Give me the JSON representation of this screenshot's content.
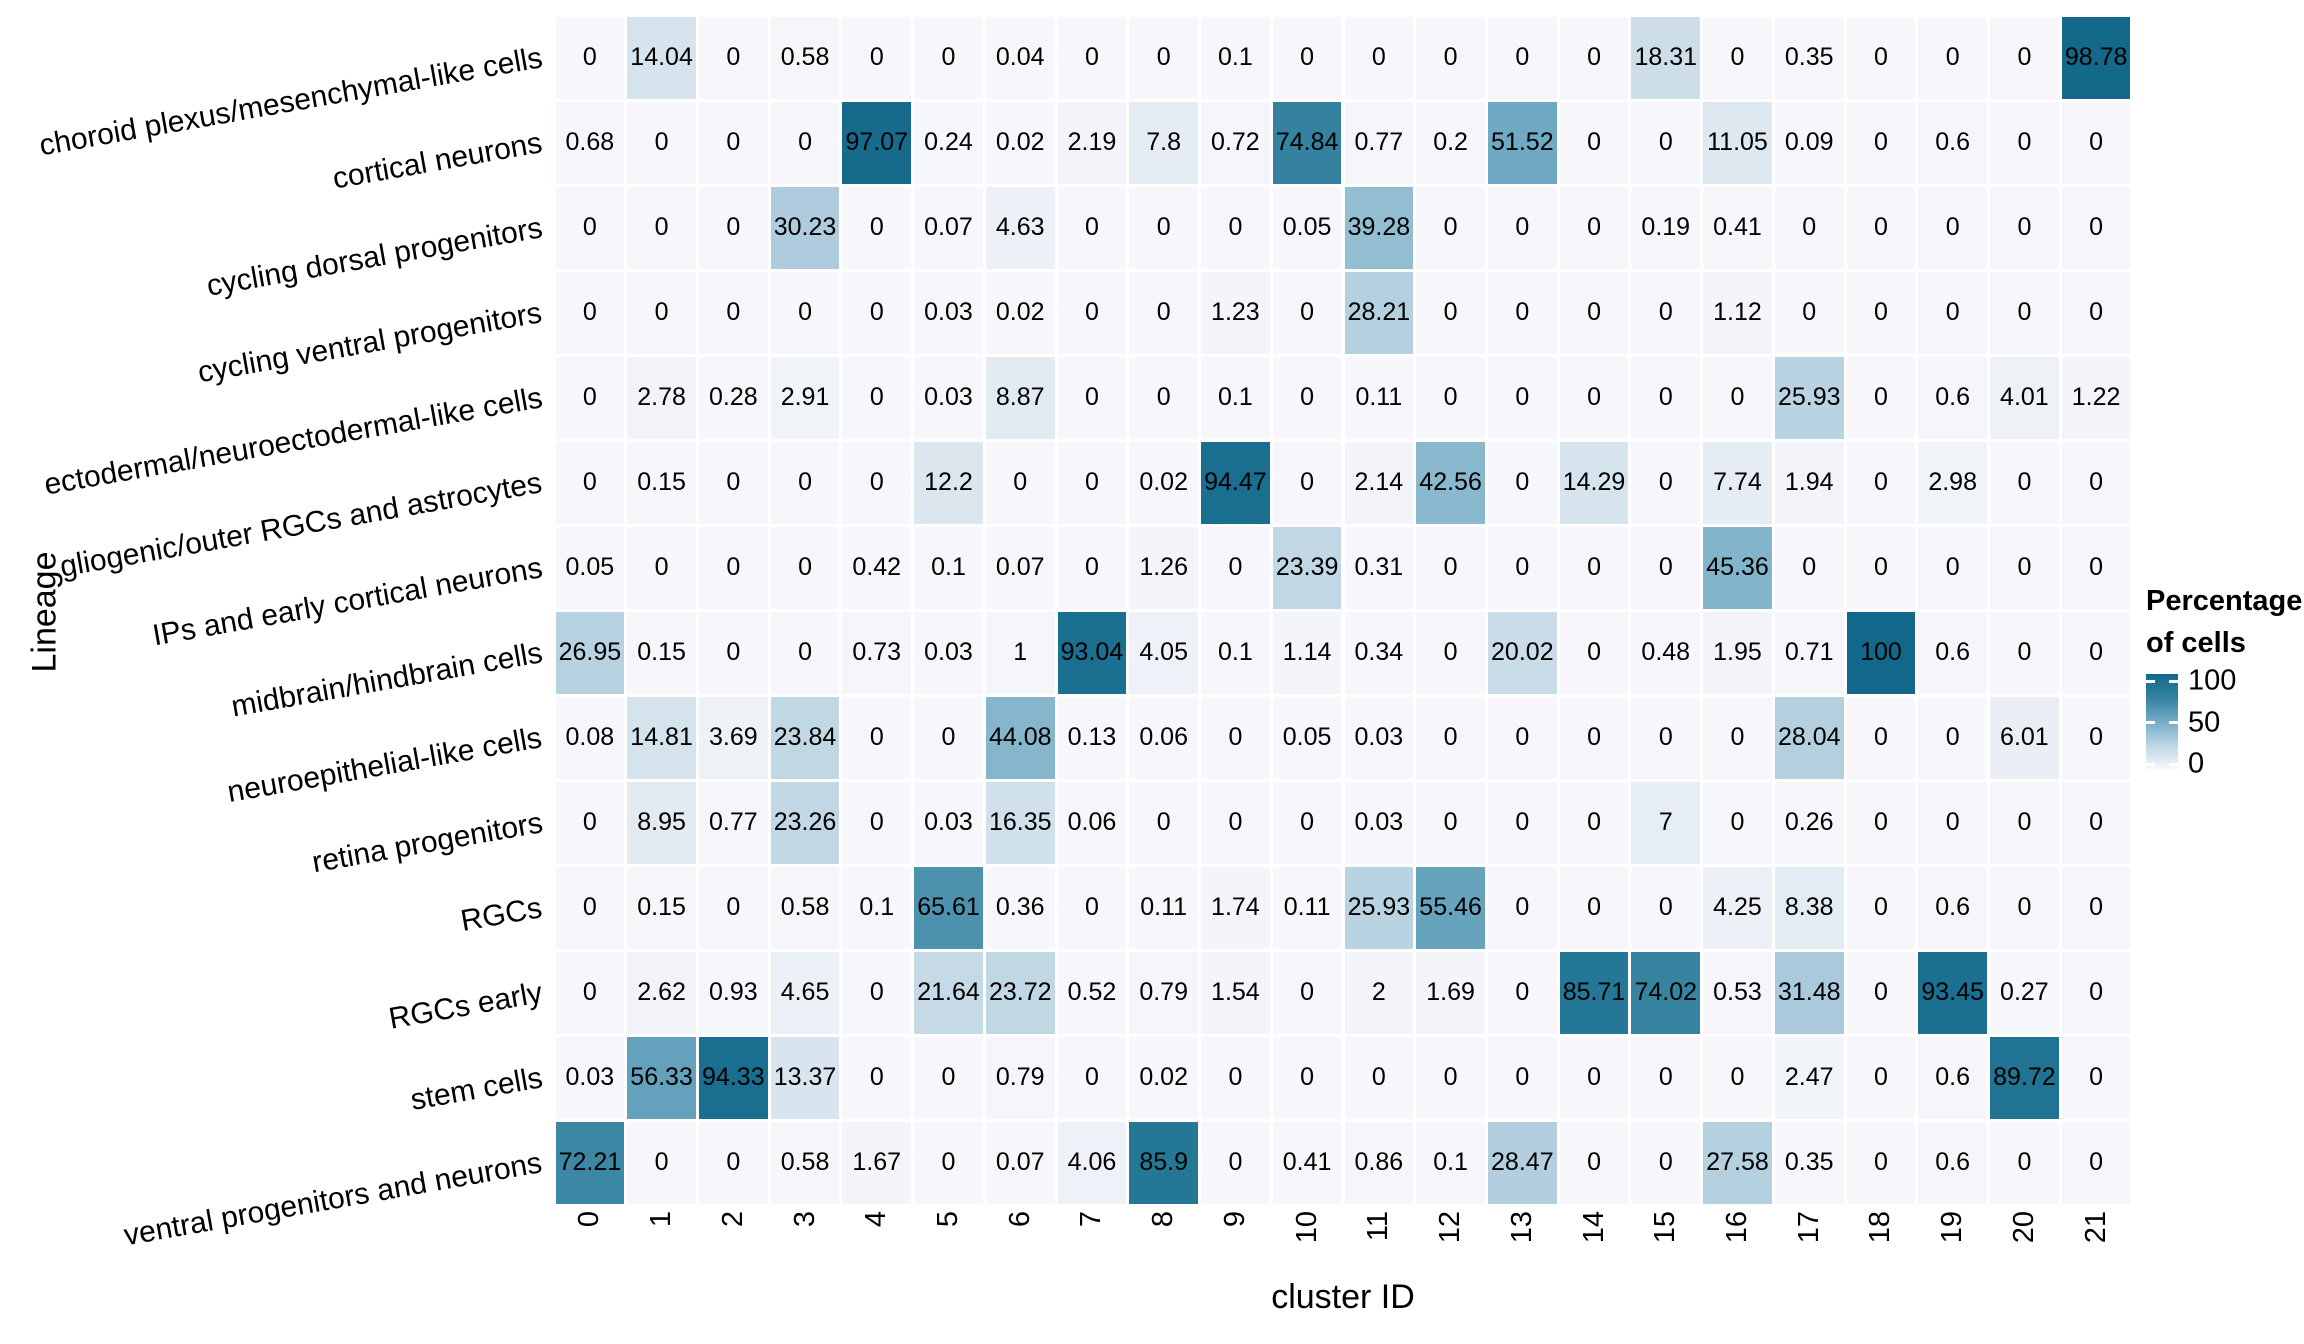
{
  "chart_data": {
    "type": "heatmap",
    "title": "",
    "xlabel": "cluster ID",
    "ylabel": "Lineage",
    "grid": false,
    "legend_position": "right",
    "legend": {
      "title": "Percentage of cells",
      "title_lines": [
        "Percentage",
        "of cells"
      ],
      "ticks": [
        100,
        50,
        0
      ],
      "range": [
        0,
        100
      ]
    },
    "color_scale": [
      {
        "value": 0,
        "color": "#F7F7FB"
      },
      {
        "value": 25,
        "color": "#BDD5E3"
      },
      {
        "value": 50,
        "color": "#74ACC5"
      },
      {
        "value": 75,
        "color": "#3482A0"
      },
      {
        "value": 100,
        "color": "#12688A"
      }
    ],
    "columns": [
      "0",
      "1",
      "2",
      "3",
      "4",
      "5",
      "6",
      "7",
      "8",
      "9",
      "10",
      "11",
      "12",
      "13",
      "14",
      "15",
      "16",
      "17",
      "18",
      "19",
      "20",
      "21"
    ],
    "rows": [
      {
        "label": "choroid plexus/mesenchymal-like cells",
        "values": [
          0,
          14.04,
          0,
          0.58,
          0,
          0,
          0.04,
          0,
          0,
          0.1,
          0,
          0,
          0,
          0,
          0,
          18.31,
          0,
          0.35,
          0,
          0,
          0,
          98.78
        ]
      },
      {
        "label": "cortical neurons",
        "values": [
          0.68,
          0,
          0,
          0,
          97.07,
          0.24,
          0.02,
          2.19,
          7.8,
          0.72,
          74.84,
          0.77,
          0.2,
          51.52,
          0,
          0,
          11.05,
          0.09,
          0,
          0.6,
          0,
          0
        ]
      },
      {
        "label": "cycling dorsal progenitors",
        "values": [
          0,
          0,
          0,
          30.23,
          0,
          0.07,
          4.63,
          0,
          0,
          0,
          0.05,
          39.28,
          0,
          0,
          0,
          0.19,
          0.41,
          0,
          0,
          0,
          0,
          0
        ]
      },
      {
        "label": "cycling ventral progenitors",
        "values": [
          0,
          0,
          0,
          0,
          0,
          0.03,
          0.02,
          0,
          0,
          1.23,
          0,
          28.21,
          0,
          0,
          0,
          0,
          1.12,
          0,
          0,
          0,
          0,
          0
        ]
      },
      {
        "label": "ectodermal/neuroectodermal-like cells",
        "values": [
          0,
          2.78,
          0.28,
          2.91,
          0,
          0.03,
          8.87,
          0,
          0,
          0.1,
          0,
          0.11,
          0,
          0,
          0,
          0,
          0,
          25.93,
          0,
          0.6,
          4.01,
          1.22
        ]
      },
      {
        "label": "gliogenic/outer RGCs and astrocytes",
        "values": [
          0,
          0.15,
          0,
          0,
          0,
          12.2,
          0,
          0,
          0.02,
          94.47,
          0,
          2.14,
          42.56,
          0,
          14.29,
          0,
          7.74,
          1.94,
          0,
          2.98,
          0,
          0
        ]
      },
      {
        "label": "IPs and early cortical neurons",
        "values": [
          0.05,
          0,
          0,
          0,
          0.42,
          0.1,
          0.07,
          0,
          1.26,
          0,
          23.39,
          0.31,
          0,
          0,
          0,
          0,
          45.36,
          0,
          0,
          0,
          0,
          0
        ]
      },
      {
        "label": "midbrain/hindbrain cells",
        "values": [
          26.95,
          0.15,
          0,
          0,
          0.73,
          0.03,
          1,
          93.04,
          4.05,
          0.1,
          1.14,
          0.34,
          0,
          20.02,
          0,
          0.48,
          1.95,
          0.71,
          100,
          0.6,
          0,
          0
        ]
      },
      {
        "label": "neuroepithelial-like cells",
        "values": [
          0.08,
          14.81,
          3.69,
          23.84,
          0,
          0,
          44.08,
          0.13,
          0.06,
          0,
          0.05,
          0.03,
          0,
          0,
          0,
          0,
          0,
          28.04,
          0,
          0,
          6.01,
          0
        ]
      },
      {
        "label": "retina progenitors",
        "values": [
          0,
          8.95,
          0.77,
          23.26,
          0,
          0.03,
          16.35,
          0.06,
          0,
          0,
          0,
          0.03,
          0,
          0,
          0,
          7,
          0,
          0.26,
          0,
          0,
          0,
          0
        ]
      },
      {
        "label": "RGCs",
        "values": [
          0,
          0.15,
          0,
          0.58,
          0.1,
          65.61,
          0.36,
          0,
          0.11,
          1.74,
          0.11,
          25.93,
          55.46,
          0,
          0,
          0,
          4.25,
          8.38,
          0,
          0.6,
          0,
          0
        ]
      },
      {
        "label": "RGCs early",
        "values": [
          0,
          2.62,
          0.93,
          4.65,
          0,
          21.64,
          23.72,
          0.52,
          0.79,
          1.54,
          0,
          2,
          1.69,
          0,
          85.71,
          74.02,
          0.53,
          31.48,
          0,
          93.45,
          0.27,
          0
        ]
      },
      {
        "label": "stem cells",
        "values": [
          0.03,
          56.33,
          94.33,
          13.37,
          0,
          0,
          0.79,
          0,
          0.02,
          0,
          0,
          0,
          0,
          0,
          0,
          0,
          0,
          2.47,
          0,
          0.6,
          89.72,
          0
        ]
      },
      {
        "label": "ventral progenitors and neurons",
        "values": [
          72.21,
          0,
          0,
          0.58,
          1.67,
          0,
          0.07,
          4.06,
          85.9,
          0,
          0.41,
          0.86,
          0.1,
          28.47,
          0,
          0,
          27.58,
          0.35,
          0,
          0.6,
          0,
          0
        ]
      }
    ]
  }
}
